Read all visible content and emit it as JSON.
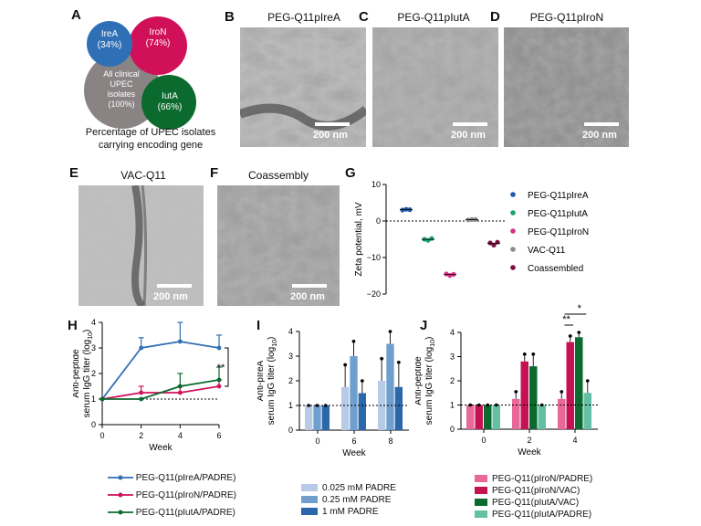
{
  "panels": {
    "A": "A",
    "B": "B",
    "C": "C",
    "D": "D",
    "E": "E",
    "F": "F",
    "G": "G",
    "H": "H",
    "I": "I",
    "J": "J"
  },
  "venn": {
    "ireA": "IreA",
    "ireA_pct": "(34%)",
    "iroN": "IroN",
    "iroN_pct": "(74%)",
    "iutA": "IutA",
    "iutA_pct": "(66%)",
    "all1": "All clinical",
    "all2": "UPEC",
    "all3": "isolates",
    "all4": "(100%)",
    "caption1": "Percentage of UPEC isolates",
    "caption2": "carrying encoding gene",
    "colors": {
      "ireA": "#2f6fb5",
      "iroN": "#d0115a",
      "iutA": "#0b6a2e",
      "all": "#8a8384"
    }
  },
  "em": {
    "B": {
      "title": "PEG-Q11pIreA",
      "scale": "200 nm"
    },
    "C": {
      "title": "PEG-Q11pIutA",
      "scale": "200 nm"
    },
    "D": {
      "title": "PEG-Q11pIroN",
      "scale": "200 nm"
    },
    "E": {
      "title": "VAC-Q11",
      "scale": "200 nm"
    },
    "F": {
      "title": "Coassembly",
      "scale": "200 nm"
    }
  },
  "chart_data": [
    {
      "panel": "G",
      "type": "scatter",
      "ylabel": "Zeta potential, mV",
      "ylim": [
        -20,
        10
      ],
      "yticks": [
        "10",
        "0",
        "−10",
        "−20"
      ],
      "series": [
        {
          "name": "PEG-Q11pIreA",
          "color": "#1f5aa6",
          "values": [
            3.0,
            3.2,
            3.1
          ]
        },
        {
          "name": "PEG-Q11pIutA",
          "color": "#1aa36a",
          "values": [
            -5.0,
            -5.3,
            -4.8
          ]
        },
        {
          "name": "PEG-Q11pIroN",
          "color": "#d63384",
          "values": [
            -14.5,
            -14.9,
            -14.6
          ]
        },
        {
          "name": "VAC-Q11",
          "color": "#8c8c8c",
          "values": [
            0.3,
            0.4,
            0.4
          ]
        },
        {
          "name": "Coassembled",
          "color": "#7a1040",
          "values": [
            -6.0,
            -6.6,
            -5.8
          ]
        }
      ]
    },
    {
      "panel": "H",
      "type": "line",
      "xlabel": "Week",
      "ylabel1": "Anti-peptide",
      "ylabel2": "serum IgG titer (log",
      "ylabel_sub": "10",
      "ylabel_end": ")",
      "x": [
        0,
        2,
        4,
        6
      ],
      "ylim": [
        0,
        4
      ],
      "xticks": [
        "0",
        "2",
        "4",
        "6"
      ],
      "yticks": [
        "0",
        "1",
        "2",
        "3",
        "4"
      ],
      "sig": "**",
      "series": [
        {
          "name": "PEG-Q11(pIreA/PADRE)",
          "color": "#2f6fb5",
          "values": [
            1.0,
            3.0,
            3.25,
            3.0
          ],
          "err": [
            0,
            0.4,
            0.75,
            0.5
          ]
        },
        {
          "name": "PEG-Q11(pIroN/PADRE)",
          "color": "#d0115a",
          "values": [
            1.0,
            1.25,
            1.25,
            1.5
          ],
          "err": [
            0,
            0.25,
            0.25,
            0.25
          ]
        },
        {
          "name": "PEG-Q11(pIutA/PADRE)",
          "color": "#0b6a2e",
          "values": [
            1.0,
            1.0,
            1.5,
            1.75
          ],
          "err": [
            0,
            0,
            0.5,
            0.5
          ]
        }
      ]
    },
    {
      "panel": "I",
      "type": "bar",
      "xlabel": "Week",
      "ylabel1": "Anti-pIreA",
      "ylabel2": "serum IgG titer (log",
      "ylabel_sub": "10",
      "ylabel_end": ")",
      "categories": [
        "0",
        "6",
        "8"
      ],
      "ylim": [
        0,
        4
      ],
      "yticks": [
        "0",
        "1",
        "2",
        "3",
        "4"
      ],
      "series": [
        {
          "name": "0.025 mM PADRE",
          "color": "#b7cbe6",
          "values": [
            1.0,
            1.75,
            2.0
          ],
          "err": [
            0,
            0.9,
            0.9
          ]
        },
        {
          "name": "0.25 mM PADRE",
          "color": "#6f9fcf",
          "values": [
            1.0,
            3.0,
            3.5
          ],
          "err": [
            0,
            0.6,
            0.5
          ]
        },
        {
          "name": "1 mM PADRE",
          "color": "#2b68ab",
          "values": [
            1.0,
            1.5,
            1.75
          ],
          "err": [
            0,
            0.5,
            1.0
          ]
        }
      ]
    },
    {
      "panel": "J",
      "type": "bar",
      "xlabel": "Week",
      "ylabel1": "Anti-peptide",
      "ylabel2": "serum IgG titer (log",
      "ylabel_sub": "10",
      "ylabel_end": ")",
      "categories": [
        "0",
        "2",
        "4"
      ],
      "ylim": [
        0,
        4
      ],
      "yticks": [
        "0",
        "1",
        "2",
        "3",
        "4"
      ],
      "sig_top": "*",
      "sig_bottom": "**",
      "series": [
        {
          "name": "PEG-Q11(pIroN/PADRE)",
          "color": "#e8689a",
          "values": [
            1.0,
            1.25,
            1.25
          ],
          "err": [
            0,
            0.3,
            0.3
          ]
        },
        {
          "name": "PEG-Q11(pIroN/VAC)",
          "color": "#c41252",
          "values": [
            1.0,
            2.8,
            3.6
          ],
          "err": [
            0,
            0.3,
            0.25
          ]
        },
        {
          "name": "PEG-Q11(pIutA/VAC)",
          "color": "#0b6a2e",
          "values": [
            1.0,
            2.6,
            3.8
          ],
          "err": [
            0,
            0.5,
            0.2
          ]
        },
        {
          "name": "PEG-Q11(pIutA/PADRE)",
          "color": "#63c0a4",
          "values": [
            1.0,
            1.0,
            1.5
          ],
          "err": [
            0,
            0,
            0.5
          ]
        }
      ]
    }
  ]
}
